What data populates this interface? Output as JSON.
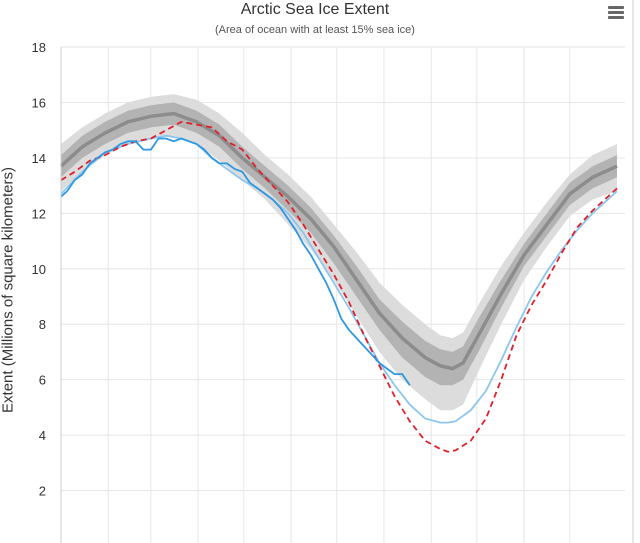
{
  "chart_data": {
    "type": "line",
    "title": "Arctic Sea Ice Extent",
    "subtitle": "(Area of ocean with at least 15% sea ice)",
    "ylabel": "Extent (Millions of square kilometers)",
    "xlabel": "",
    "ylim": [
      0,
      18
    ],
    "yticks": [
      2,
      4,
      6,
      8,
      10,
      12,
      14,
      16,
      18
    ],
    "xlim": [
      1,
      366
    ],
    "grid": true,
    "legend": "none",
    "colors": {
      "median": "#8c8c8c",
      "band_outer": "#dcdcdc",
      "band_inner": "#b3b3b3",
      "current": "#2f97e0",
      "light_blue": "#8cc6ef",
      "red_dashed": "#e0202a"
    },
    "series": [
      {
        "style": "median",
        "x": [
          1,
          15,
          30,
          45,
          60,
          75,
          90,
          105,
          120,
          135,
          150,
          165,
          180,
          195,
          210,
          225,
          240,
          250,
          258,
          265,
          275,
          290,
          305,
          320,
          335,
          350,
          366
        ],
        "values": [
          13.7,
          14.4,
          14.9,
          15.3,
          15.5,
          15.6,
          15.3,
          14.8,
          14.0,
          13.3,
          12.6,
          11.8,
          10.8,
          9.6,
          8.4,
          7.5,
          6.8,
          6.5,
          6.4,
          6.6,
          7.6,
          9.1,
          10.5,
          11.6,
          12.7,
          13.3,
          13.7
        ]
      },
      {
        "style": "band_inner",
        "x": [
          1,
          15,
          30,
          45,
          60,
          75,
          90,
          105,
          120,
          135,
          150,
          165,
          180,
          195,
          210,
          225,
          240,
          250,
          258,
          265,
          275,
          290,
          305,
          320,
          335,
          350,
          366
        ],
        "upper": [
          14.1,
          14.8,
          15.3,
          15.7,
          15.9,
          16.0,
          15.7,
          15.2,
          14.4,
          13.7,
          13.0,
          12.2,
          11.2,
          10.1,
          8.9,
          8.1,
          7.4,
          7.1,
          7.0,
          7.2,
          8.2,
          9.6,
          10.9,
          12.0,
          13.1,
          13.7,
          14.1
        ],
        "lower": [
          13.3,
          14.0,
          14.5,
          14.9,
          15.1,
          15.2,
          14.9,
          14.4,
          13.6,
          12.9,
          12.1,
          11.3,
          10.2,
          9.0,
          7.8,
          6.8,
          6.1,
          5.8,
          5.8,
          6.0,
          7.0,
          8.6,
          10.1,
          11.2,
          12.3,
          12.9,
          13.3
        ]
      },
      {
        "style": "band_outer",
        "x": [
          1,
          15,
          30,
          45,
          60,
          75,
          90,
          105,
          120,
          135,
          150,
          165,
          180,
          195,
          210,
          225,
          240,
          250,
          258,
          265,
          275,
          290,
          305,
          320,
          335,
          350,
          366
        ],
        "upper": [
          14.5,
          15.1,
          15.6,
          16.0,
          16.2,
          16.3,
          16.1,
          15.6,
          14.9,
          14.1,
          13.4,
          12.6,
          11.6,
          10.6,
          9.5,
          8.7,
          8.0,
          7.6,
          7.5,
          7.7,
          8.7,
          10.1,
          11.3,
          12.4,
          13.4,
          14.1,
          14.5
        ],
        "lower": [
          12.8,
          13.5,
          14.1,
          14.5,
          14.7,
          14.8,
          14.5,
          13.9,
          13.2,
          12.5,
          11.6,
          10.7,
          9.6,
          8.3,
          7.0,
          6.0,
          5.3,
          4.9,
          4.9,
          5.1,
          6.3,
          8.0,
          9.6,
          10.8,
          11.9,
          12.5,
          12.8
        ]
      },
      {
        "style": "light_blue",
        "x": [
          1,
          15,
          30,
          45,
          60,
          70,
          80,
          90,
          100,
          110,
          120,
          130,
          140,
          150,
          160,
          170,
          180,
          190,
          200,
          210,
          220,
          230,
          240,
          250,
          255,
          260,
          270,
          280,
          290,
          300,
          310,
          320,
          330,
          340,
          350,
          366
        ],
        "values": [
          12.7,
          13.5,
          14.2,
          14.5,
          14.7,
          14.8,
          14.7,
          14.5,
          14.0,
          13.6,
          13.2,
          12.9,
          12.5,
          12.0,
          11.3,
          10.4,
          9.5,
          8.6,
          7.6,
          6.6,
          5.8,
          5.1,
          4.6,
          4.45,
          4.45,
          4.5,
          4.9,
          5.6,
          6.7,
          7.9,
          9.0,
          9.9,
          10.7,
          11.4,
          12.0,
          12.8
        ]
      },
      {
        "style": "red_dashed",
        "x": [
          1,
          10,
          20,
          30,
          40,
          50,
          60,
          70,
          80,
          90,
          100,
          110,
          120,
          130,
          140,
          150,
          160,
          170,
          180,
          190,
          200,
          210,
          220,
          230,
          240,
          250,
          255,
          260,
          270,
          280,
          290,
          300,
          310,
          320,
          330,
          340,
          350,
          366
        ],
        "values": [
          13.2,
          13.5,
          13.9,
          14.1,
          14.4,
          14.6,
          14.7,
          15.0,
          15.3,
          15.2,
          15.1,
          14.6,
          14.3,
          13.6,
          13.0,
          12.4,
          11.6,
          10.7,
          9.8,
          8.8,
          7.6,
          6.5,
          5.4,
          4.5,
          3.8,
          3.5,
          3.4,
          3.45,
          3.8,
          4.6,
          6.0,
          7.6,
          8.7,
          9.6,
          10.6,
          11.5,
          12.1,
          12.9
        ]
      },
      {
        "style": "current",
        "x": [
          1,
          5,
          10,
          15,
          20,
          25,
          30,
          35,
          40,
          45,
          50,
          55,
          60,
          65,
          70,
          75,
          80,
          85,
          90,
          95,
          100,
          105,
          110,
          115,
          120,
          125,
          130,
          135,
          140,
          145,
          150,
          155,
          160,
          165,
          170,
          175,
          180,
          185,
          190,
          195,
          200,
          205,
          210,
          215,
          220,
          225,
          230
        ],
        "values": [
          12.6,
          12.8,
          13.2,
          13.4,
          13.8,
          14.0,
          14.2,
          14.3,
          14.5,
          14.6,
          14.6,
          14.3,
          14.3,
          14.7,
          14.7,
          14.6,
          14.7,
          14.6,
          14.5,
          14.3,
          14.0,
          13.8,
          13.8,
          13.6,
          13.5,
          13.1,
          12.9,
          12.7,
          12.5,
          12.2,
          11.8,
          11.4,
          10.9,
          10.5,
          10.0,
          9.5,
          8.9,
          8.2,
          7.8,
          7.5,
          7.2,
          6.9,
          6.6,
          6.4,
          6.2,
          6.2,
          5.8
        ]
      }
    ]
  }
}
